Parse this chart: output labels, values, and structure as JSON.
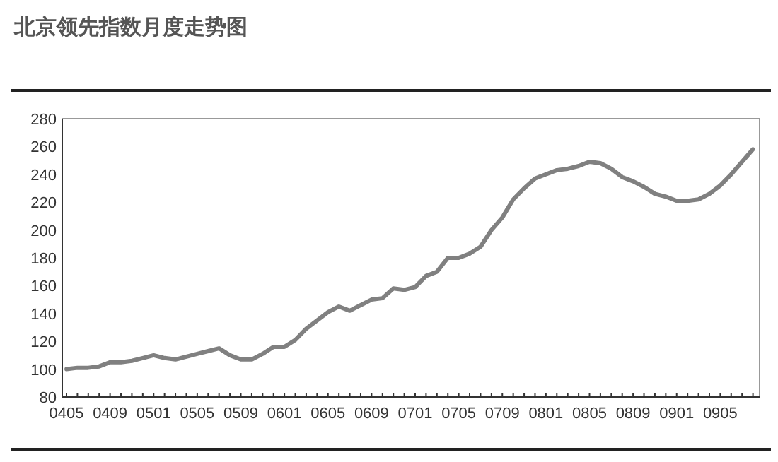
{
  "chart_data": {
    "type": "line",
    "title": "北京领先指数月度走势图",
    "categories": [
      "0405",
      null,
      null,
      null,
      "0409",
      null,
      null,
      null,
      "0501",
      null,
      null,
      null,
      "0505",
      null,
      null,
      null,
      "0509",
      null,
      null,
      null,
      "0601",
      null,
      null,
      null,
      "0605",
      null,
      null,
      null,
      "0609",
      null,
      null,
      null,
      "0701",
      null,
      null,
      null,
      "0705",
      null,
      null,
      null,
      "0709",
      null,
      null,
      null,
      "0801",
      null,
      null,
      null,
      "0805",
      null,
      null,
      null,
      "0809",
      null,
      null,
      null,
      "0901",
      null,
      null,
      null,
      "0905",
      null,
      null,
      null
    ],
    "values": [
      100,
      101,
      101,
      102,
      105,
      105,
      106,
      108,
      110,
      108,
      107,
      109,
      111,
      113,
      115,
      110,
      107,
      107,
      111,
      116,
      116,
      121,
      129,
      135,
      141,
      145,
      142,
      146,
      150,
      151,
      158,
      157,
      159,
      167,
      170,
      180,
      180,
      183,
      188,
      200,
      209,
      222,
      230,
      237,
      240,
      243,
      244,
      246,
      249,
      248,
      244,
      238,
      235,
      231,
      226,
      224,
      221,
      221,
      222,
      226,
      232,
      240,
      249,
      258
    ],
    "color": "#808080",
    "ylim": [
      80,
      280
    ],
    "yticks": [
      80,
      100,
      120,
      140,
      160,
      180,
      200,
      220,
      240,
      260,
      280
    ]
  }
}
